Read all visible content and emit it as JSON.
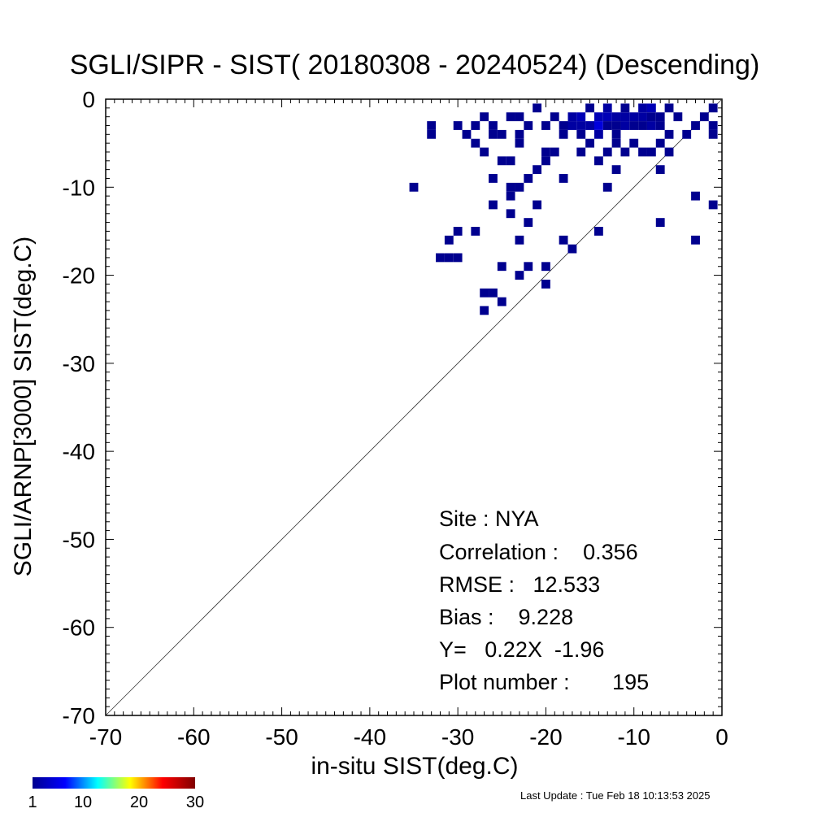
{
  "chart_data": {
    "type": "heatmap",
    "title": "SGLI/SIPR - SIST( 20180308 - 20240524) (Descending)",
    "xlabel": "in-situ SIST(deg.C)",
    "ylabel": "SGLI/ARNP[3000]   SIST(deg.C)",
    "xlim": [
      -70,
      0
    ],
    "ylim": [
      -70,
      0
    ],
    "xticks": [
      "-70",
      "-60",
      "-50",
      "-40",
      "-30",
      "-20",
      "-10",
      "0"
    ],
    "yticks": [
      "0",
      "-10",
      "-20",
      "-30",
      "-40",
      "-50",
      "-60",
      "-70"
    ],
    "reference_line": "1:1",
    "stats": {
      "site": "Site : NYA",
      "correlation": "Correlation :    0.356",
      "rmse": "RMSE :   12.533",
      "bias": "Bias :    9.228",
      "regression": "Y=   0.22X  -1.96",
      "plot_number": "Plot number :       195"
    },
    "colorbar": {
      "ticks": [
        "1",
        "10",
        "20",
        "30"
      ],
      "min": 1,
      "max": 30,
      "colors": [
        "#00008f",
        "#0000ff",
        "#00ffff",
        "#ffff00",
        "#ff0000",
        "#800000"
      ]
    },
    "cells": [
      {
        "x": -35,
        "y": -10,
        "c": 1
      },
      {
        "x": -33,
        "y": -3,
        "c": 1
      },
      {
        "x": -33,
        "y": -4,
        "c": 1
      },
      {
        "x": -30,
        "y": -3,
        "c": 1
      },
      {
        "x": -29,
        "y": -4,
        "c": 1
      },
      {
        "x": -28,
        "y": -3,
        "c": 1
      },
      {
        "x": -28,
        "y": -5,
        "c": 1
      },
      {
        "x": -27,
        "y": -2,
        "c": 1
      },
      {
        "x": -26,
        "y": -4,
        "c": 1
      },
      {
        "x": -26,
        "y": -3,
        "c": 1
      },
      {
        "x": -25,
        "y": -4,
        "c": 1
      },
      {
        "x": -24,
        "y": -2,
        "c": 1
      },
      {
        "x": -23,
        "y": -4,
        "c": 1
      },
      {
        "x": -23,
        "y": -2,
        "c": 1
      },
      {
        "x": -22,
        "y": -3,
        "c": 1
      },
      {
        "x": -21,
        "y": -1,
        "c": 1
      },
      {
        "x": -20,
        "y": -3,
        "c": 1
      },
      {
        "x": -19,
        "y": -2,
        "c": 1
      },
      {
        "x": -18,
        "y": -4,
        "c": 1
      },
      {
        "x": -18,
        "y": -3,
        "c": 1
      },
      {
        "x": -17,
        "y": -2,
        "c": 2
      },
      {
        "x": -17,
        "y": -3,
        "c": 2
      },
      {
        "x": -16,
        "y": -2,
        "c": 3
      },
      {
        "x": -16,
        "y": -3,
        "c": 2
      },
      {
        "x": -16,
        "y": -4,
        "c": 1
      },
      {
        "x": -15,
        "y": -1,
        "c": 1
      },
      {
        "x": -15,
        "y": -3,
        "c": 2
      },
      {
        "x": -14,
        "y": -2,
        "c": 3
      },
      {
        "x": -14,
        "y": -3,
        "c": 5
      },
      {
        "x": -14,
        "y": -4,
        "c": 2
      },
      {
        "x": -13,
        "y": -1,
        "c": 2
      },
      {
        "x": -13,
        "y": -2,
        "c": 3
      },
      {
        "x": -13,
        "y": -3,
        "c": 1
      },
      {
        "x": -12,
        "y": -2,
        "c": 2
      },
      {
        "x": -12,
        "y": -3,
        "c": 1
      },
      {
        "x": -12,
        "y": -4,
        "c": 1
      },
      {
        "x": -11,
        "y": -1,
        "c": 1
      },
      {
        "x": -11,
        "y": -2,
        "c": 2
      },
      {
        "x": -11,
        "y": -3,
        "c": 2
      },
      {
        "x": -10,
        "y": -2,
        "c": 2
      },
      {
        "x": -10,
        "y": -3,
        "c": 1
      },
      {
        "x": -9,
        "y": -1,
        "c": 2
      },
      {
        "x": -9,
        "y": -2,
        "c": 2
      },
      {
        "x": -9,
        "y": -3,
        "c": 1
      },
      {
        "x": -8,
        "y": -1,
        "c": 3
      },
      {
        "x": -8,
        "y": -2,
        "c": 1
      },
      {
        "x": -8,
        "y": -3,
        "c": 2
      },
      {
        "x": -7,
        "y": -2,
        "c": 1
      },
      {
        "x": -7,
        "y": -3,
        "c": 1
      },
      {
        "x": -6,
        "y": -1,
        "c": 1
      },
      {
        "x": -6,
        "y": -4,
        "c": 1
      },
      {
        "x": -5,
        "y": -2,
        "c": 1
      },
      {
        "x": -4,
        "y": -4,
        "c": 1
      },
      {
        "x": -3,
        "y": -3,
        "c": 1
      },
      {
        "x": -2,
        "y": -2,
        "c": 1
      },
      {
        "x": -1,
        "y": -1,
        "c": 1
      },
      {
        "x": -1,
        "y": -4,
        "c": 1
      },
      {
        "x": -1,
        "y": -3,
        "c": 1
      },
      {
        "x": -27,
        "y": -6,
        "c": 1
      },
      {
        "x": -26,
        "y": -9,
        "c": 1
      },
      {
        "x": -25,
        "y": -7,
        "c": 1
      },
      {
        "x": -24,
        "y": -7,
        "c": 1
      },
      {
        "x": -24,
        "y": -10,
        "c": 1
      },
      {
        "x": -24,
        "y": -11,
        "c": 1
      },
      {
        "x": -23,
        "y": -10,
        "c": 1
      },
      {
        "x": -23,
        "y": -5,
        "c": 1
      },
      {
        "x": -22,
        "y": -9,
        "c": 1
      },
      {
        "x": -21,
        "y": -8,
        "c": 1
      },
      {
        "x": -21,
        "y": -12,
        "c": 1
      },
      {
        "x": -20,
        "y": -7,
        "c": 1
      },
      {
        "x": -20,
        "y": -6,
        "c": 1
      },
      {
        "x": -19,
        "y": -6,
        "c": 1
      },
      {
        "x": -18,
        "y": -9,
        "c": 1
      },
      {
        "x": -16,
        "y": -6,
        "c": 1
      },
      {
        "x": -15,
        "y": -5,
        "c": 1
      },
      {
        "x": -14,
        "y": -7,
        "c": 1
      },
      {
        "x": -13,
        "y": -10,
        "c": 1
      },
      {
        "x": -13,
        "y": -6,
        "c": 1
      },
      {
        "x": -12,
        "y": -5,
        "c": 1
      },
      {
        "x": -12,
        "y": -8,
        "c": 1
      },
      {
        "x": -11,
        "y": -6,
        "c": 1
      },
      {
        "x": -10,
        "y": -5,
        "c": 1
      },
      {
        "x": -9,
        "y": -6,
        "c": 1
      },
      {
        "x": -8,
        "y": -6,
        "c": 1
      },
      {
        "x": -7,
        "y": -5,
        "c": 1
      },
      {
        "x": -7,
        "y": -8,
        "c": 1
      },
      {
        "x": -6,
        "y": -6,
        "c": 1
      },
      {
        "x": -26,
        "y": -12,
        "c": 1
      },
      {
        "x": -24,
        "y": -13,
        "c": 1
      },
      {
        "x": -22,
        "y": -14,
        "c": 1
      },
      {
        "x": -18,
        "y": -16,
        "c": 1
      },
      {
        "x": -17,
        "y": -17,
        "c": 1
      },
      {
        "x": -14,
        "y": -15,
        "c": 1
      },
      {
        "x": -7,
        "y": -14,
        "c": 1
      },
      {
        "x": -3,
        "y": -11,
        "c": 1
      },
      {
        "x": -3,
        "y": -16,
        "c": 1
      },
      {
        "x": -1,
        "y": -12,
        "c": 1
      },
      {
        "x": -30,
        "y": -15,
        "c": 1
      },
      {
        "x": -28,
        "y": -15,
        "c": 1
      },
      {
        "x": -31,
        "y": -16,
        "c": 1
      },
      {
        "x": -31,
        "y": -18,
        "c": 1
      },
      {
        "x": -30,
        "y": -18,
        "c": 1
      },
      {
        "x": -32,
        "y": -18,
        "c": 1
      },
      {
        "x": -23,
        "y": -16,
        "c": 1
      },
      {
        "x": -25,
        "y": -19,
        "c": 1
      },
      {
        "x": -22,
        "y": -19,
        "c": 1
      },
      {
        "x": -23,
        "y": -20,
        "c": 1
      },
      {
        "x": -20,
        "y": -19,
        "c": 1
      },
      {
        "x": -20,
        "y": -21,
        "c": 1
      },
      {
        "x": -27,
        "y": -22,
        "c": 1
      },
      {
        "x": -26,
        "y": -22,
        "c": 1
      },
      {
        "x": -25,
        "y": -23,
        "c": 1
      },
      {
        "x": -27,
        "y": -24,
        "c": 1
      }
    ]
  },
  "last_update": "Last Update : Tue Feb 18 10:13:53 2025"
}
